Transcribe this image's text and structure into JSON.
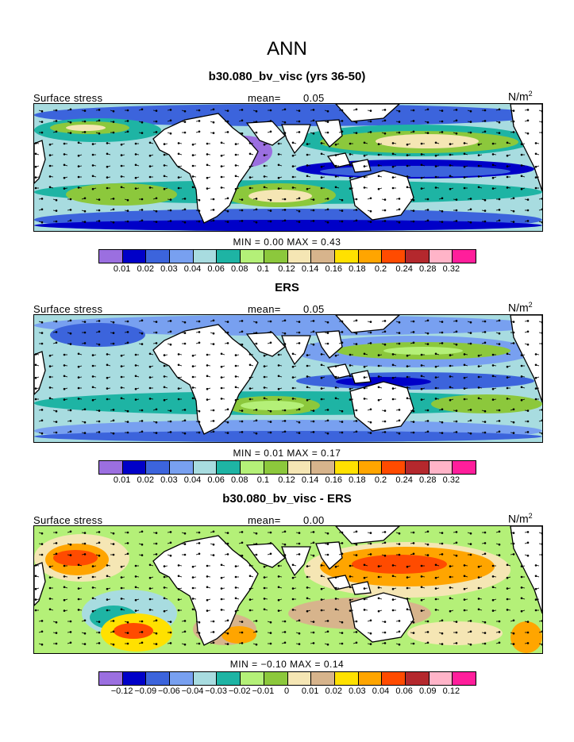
{
  "main_title": "ANN",
  "palette_abs": [
    "#9b6fe0",
    "#0000c8",
    "#3c64dc",
    "#78a0f0",
    "#a8dce0",
    "#1eb4a4",
    "#b4f078",
    "#8cc83c",
    "#f5e6b4",
    "#d7b48c",
    "#ffe100",
    "#ffa500",
    "#ff4b00",
    "#b4282d",
    "#ffb4c8",
    "#ff1e9b"
  ],
  "palette_diff": [
    "#9b6fe0",
    "#0000c8",
    "#3c64dc",
    "#78a0f0",
    "#a8dce0",
    "#1eb4a4",
    "#b4f078",
    "#8cc83c",
    "#f5e6b4",
    "#d7b48c",
    "#ffe100",
    "#ffa500",
    "#ff4b00",
    "#b4282d",
    "#ffb4c8",
    "#ff1e9b"
  ],
  "panels": [
    {
      "title": "b30.080_bv_visc (yrs 36-50)",
      "left_label": "Surface stress",
      "mean_label": "mean=",
      "mean_value": "0.05",
      "units_base": "N/m",
      "units_exp": "2",
      "min_label": "MIN =",
      "min_value": "0.00",
      "max_label": "MAX =",
      "max_value": "0.43",
      "ticks": [
        "0.01",
        "0.02",
        "0.03",
        "0.04",
        "0.06",
        "0.08",
        "0.1",
        "0.12",
        "0.14",
        "0.16",
        "0.18",
        "0.2",
        "0.24",
        "0.28",
        "0.32"
      ]
    },
    {
      "title": "ERS",
      "left_label": "Surface stress",
      "mean_label": "mean=",
      "mean_value": "0.05",
      "units_base": "N/m",
      "units_exp": "2",
      "min_label": "MIN =",
      "min_value": "0.01",
      "max_label": "MAX =",
      "max_value": "0.17",
      "ticks": [
        "0.01",
        "0.02",
        "0.03",
        "0.04",
        "0.06",
        "0.08",
        "0.1",
        "0.12",
        "0.14",
        "0.16",
        "0.18",
        "0.2",
        "0.24",
        "0.28",
        "0.32"
      ]
    },
    {
      "title": "b30.080_bv_visc - ERS",
      "left_label": "Surface stress",
      "mean_label": "mean=",
      "mean_value": "0.00",
      "units_base": "N/m",
      "units_exp": "2",
      "min_label": "MIN =",
      "min_value": "−0.10",
      "max_label": "MAX =",
      "max_value": "0.14",
      "ticks": [
        "−0.12",
        "−0.09",
        "−0.06",
        "−0.04",
        "−0.03",
        "−0.02",
        "−0.01",
        "0",
        "0.01",
        "0.02",
        "0.03",
        "0.04",
        "0.06",
        "0.09",
        "0.12"
      ]
    }
  ]
}
